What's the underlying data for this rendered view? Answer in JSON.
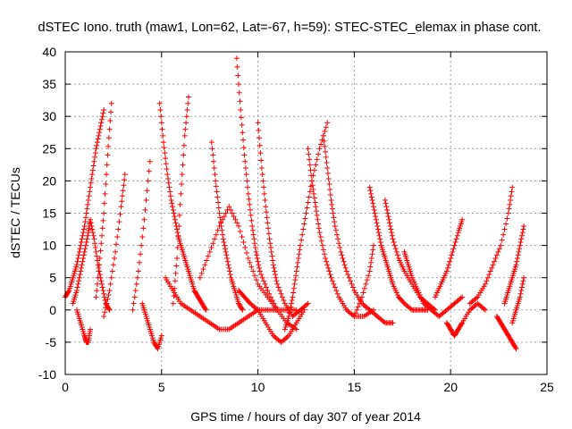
{
  "chart_data": {
    "type": "scatter",
    "title": "dSTEC Iono. truth (maw1, Lon=62, Lat=-67, h=59): STEC-STEC_elemax in phase cont.",
    "xlabel": "GPS time / hours of day 307 of year 2014",
    "ylabel": "dSTEC  / TECUs",
    "xlim": [
      0,
      25
    ],
    "ylim": [
      -10,
      40
    ],
    "xticks": [
      "0",
      "5",
      "10",
      "15",
      "20",
      "25"
    ],
    "yticks": [
      "-10",
      "-5",
      "0",
      "5",
      "10",
      "15",
      "20",
      "25",
      "30",
      "35",
      "40"
    ],
    "grid": true,
    "marker": "+",
    "color": "#ff0000",
    "series": [
      {
        "x": [
          0.0,
          0.2,
          0.4,
          0.6,
          0.8,
          1.0,
          1.2,
          1.4,
          1.6,
          1.8,
          2.0
        ],
        "y": [
          2,
          3,
          5,
          7,
          10,
          13,
          17,
          21,
          25,
          28,
          31
        ]
      },
      {
        "x": [
          0.4,
          0.6,
          0.8,
          1.0,
          1.2,
          1.3,
          1.5,
          1.7,
          1.9,
          2.1,
          2.3
        ],
        "y": [
          1,
          3,
          6,
          9,
          12,
          14,
          11,
          7,
          4,
          1,
          0
        ]
      },
      {
        "x": [
          0.6,
          0.8,
          1.0,
          1.1,
          1.2,
          1.3
        ],
        "y": [
          0,
          -2,
          -4,
          -5,
          -5,
          -3
        ]
      },
      {
        "x": [
          1.6,
          1.8,
          2.0,
          2.2,
          2.4
        ],
        "y": [
          2,
          8,
          15,
          24,
          32
        ]
      },
      {
        "x": [
          2.0,
          2.3,
          2.6,
          2.9,
          3.1
        ],
        "y": [
          -1,
          3,
          9,
          16,
          21
        ]
      },
      {
        "x": [
          3.5,
          3.8,
          4.1,
          4.4
        ],
        "y": [
          0,
          6,
          14,
          23
        ]
      },
      {
        "x": [
          4.0,
          4.2,
          4.4,
          4.6,
          4.8,
          5.0
        ],
        "y": [
          1,
          -1,
          -3,
          -5,
          -6,
          -4
        ]
      },
      {
        "x": [
          4.9,
          5.1,
          5.3,
          5.5,
          5.7,
          5.9,
          6.1,
          6.3,
          6.5,
          6.7,
          6.9,
          7.1,
          7.3
        ],
        "y": [
          32,
          26,
          21,
          17,
          14,
          11,
          9,
          7,
          5,
          3,
          2,
          1,
          0
        ]
      },
      {
        "x": [
          5.6,
          5.8,
          6.0,
          6.2,
          6.4
        ],
        "y": [
          1,
          8,
          18,
          27,
          33
        ]
      },
      {
        "x": [
          5.2,
          5.6,
          6.0,
          6.5,
          7.0,
          7.5,
          8.0,
          8.5,
          9.0,
          9.5,
          10.0,
          10.5,
          11.0,
          11.5,
          12.0
        ],
        "y": [
          5,
          3,
          1,
          0,
          -1,
          -2,
          -3,
          -3,
          -2,
          -1,
          0,
          0,
          0,
          0,
          0
        ]
      },
      {
        "x": [
          7.6,
          7.8,
          8.0,
          8.2,
          8.4,
          8.6,
          8.8,
          9.0,
          9.2
        ],
        "y": [
          26,
          20,
          15,
          11,
          8,
          5,
          3,
          1,
          0
        ]
      },
      {
        "x": [
          7.0,
          7.5,
          8.0,
          8.5,
          9.0,
          9.5,
          10.0,
          10.5,
          11.0
        ],
        "y": [
          5,
          9,
          13,
          16,
          13,
          8,
          4,
          2,
          0
        ]
      },
      {
        "x": [
          8.9,
          9.1,
          9.3,
          9.5,
          9.7,
          9.9,
          10.1,
          10.5,
          11.0,
          11.5,
          12.0
        ],
        "y": [
          39,
          31,
          24,
          18,
          13,
          9,
          6,
          3,
          0,
          -2,
          -3
        ]
      },
      {
        "x": [
          9.0,
          9.3,
          9.6,
          10.0,
          10.4,
          10.8,
          11.2,
          11.6,
          12.0,
          12.4
        ],
        "y": [
          3,
          2,
          1,
          0,
          -2,
          -4,
          -5,
          -4,
          -2,
          0
        ]
      },
      {
        "x": [
          10.0,
          10.2,
          10.4,
          10.6,
          10.8,
          11.0,
          11.4,
          11.8,
          12.2,
          12.6
        ],
        "y": [
          29,
          22,
          16,
          11,
          7,
          4,
          1,
          -1,
          0,
          1
        ]
      },
      {
        "x": [
          11.4,
          11.6,
          11.8,
          12.0,
          12.2,
          12.5,
          12.8,
          13.2,
          13.6
        ],
        "y": [
          -3,
          -1,
          2,
          6,
          10,
          15,
          20,
          25,
          29
        ]
      },
      {
        "x": [
          12.6,
          12.8,
          13.0,
          13.2,
          13.5,
          13.8,
          14.2,
          14.6,
          15.0,
          15.5,
          16.0
        ],
        "y": [
          25,
          20,
          16,
          12,
          8,
          5,
          2,
          0,
          -1,
          -1,
          0
        ]
      },
      {
        "x": [
          13.4,
          13.6,
          13.8,
          14.0,
          14.3,
          14.6,
          15.0,
          15.4,
          15.8,
          16.2,
          16.6,
          17.0
        ],
        "y": [
          27,
          22,
          17,
          13,
          9,
          6,
          3,
          1,
          0,
          -1,
          -2,
          -2
        ]
      },
      {
        "x": [
          15.0,
          15.4,
          15.8,
          16.0
        ],
        "y": [
          -1,
          2,
          6,
          10
        ]
      },
      {
        "x": [
          15.8,
          16.0,
          16.2,
          16.4,
          16.6,
          16.8,
          17.0,
          17.3,
          17.6,
          18.0,
          18.4,
          18.8
        ],
        "y": [
          19,
          16,
          13,
          10,
          8,
          6,
          4,
          2,
          1,
          0,
          0,
          0
        ]
      },
      {
        "x": [
          16.6,
          16.8,
          17.0,
          17.3,
          17.6,
          18.0,
          18.4,
          18.8,
          19.2
        ],
        "y": [
          17,
          14,
          11,
          8,
          6,
          4,
          2,
          1,
          0
        ]
      },
      {
        "x": [
          17.6,
          17.8,
          18.0,
          18.3,
          18.6,
          19.0,
          19.4,
          19.8,
          20.2,
          20.6
        ],
        "y": [
          9,
          7,
          5,
          3,
          1,
          0,
          -1,
          0,
          1,
          2
        ]
      },
      {
        "x": [
          19.2,
          19.5,
          19.8,
          20.1,
          20.4,
          20.6
        ],
        "y": [
          2,
          4,
          6,
          9,
          12,
          14
        ]
      },
      {
        "x": [
          19.8,
          20.0,
          20.2,
          20.4,
          20.6,
          21.0,
          21.4,
          21.8
        ],
        "y": [
          -2,
          -3,
          -4,
          -3,
          -2,
          0,
          1,
          0
        ]
      },
      {
        "x": [
          21.0,
          21.4,
          21.8,
          22.2,
          22.6,
          23.0,
          23.2
        ],
        "y": [
          1,
          2,
          4,
          7,
          10,
          15,
          19
        ]
      },
      {
        "x": [
          22.4,
          22.6,
          22.8,
          23.0,
          23.2,
          23.4
        ],
        "y": [
          -1,
          -2,
          -3,
          -4,
          -5,
          -6
        ]
      },
      {
        "x": [
          22.8,
          23.0,
          23.2,
          23.4,
          23.6,
          23.8
        ],
        "y": [
          1,
          3,
          5,
          7,
          10,
          13
        ]
      },
      {
        "x": [
          23.2,
          23.4,
          23.6,
          23.8
        ],
        "y": [
          -2,
          0,
          2,
          5
        ]
      }
    ]
  }
}
